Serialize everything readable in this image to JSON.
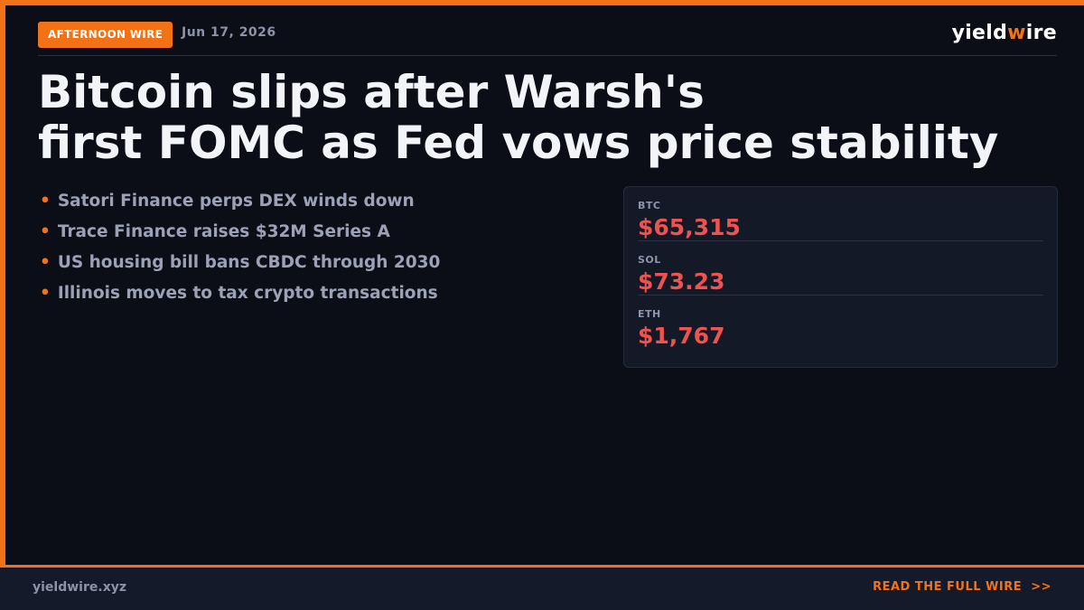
{
  "header": {
    "badge": "AFTERNOON WIRE",
    "date": "Jun 17, 2026",
    "logo_prefix": "yield",
    "logo_accent": "w",
    "logo_suffix": "ire"
  },
  "headline": {
    "line1": "Bitcoin slips after Warsh's",
    "line2": "first FOMC as Fed vows price stability"
  },
  "bullet_marker": "•",
  "bullets": [
    "Satori Finance perps DEX winds down",
    "Trace Finance raises $32M Series A",
    "US housing bill bans CBDC through 2030",
    "Illinois moves to tax crypto transactions"
  ],
  "prices": [
    {
      "label": "BTC",
      "value": "$65,315"
    },
    {
      "label": "SOL",
      "value": "$73.23"
    },
    {
      "label": "ETH",
      "value": "$1,767"
    }
  ],
  "footer": {
    "site": "yieldwire.xyz",
    "cta": "READ THE FULL WIRE",
    "cta_arrow": ">>"
  },
  "colors": {
    "accent": "#f47216",
    "price_down": "#ef5350",
    "background": "#0b0e16"
  }
}
